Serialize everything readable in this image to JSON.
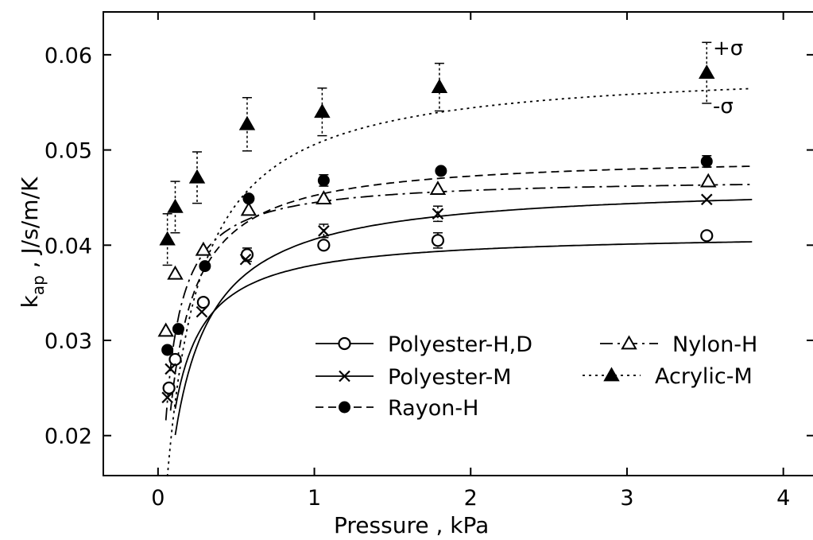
{
  "chart_data": {
    "type": "scatter",
    "xlabel": "Pressure , kPa",
    "ylabel": "k_ap , J/s/m/K",
    "xlim": [
      -0.35,
      4.2
    ],
    "ylim": [
      0.0158,
      0.0645
    ],
    "x_ticks": [
      0,
      1,
      2,
      3,
      4
    ],
    "x_tick_labels": [
      "0",
      "1",
      "2",
      "3",
      "4"
    ],
    "y_ticks": [
      0.02,
      0.03,
      0.04,
      0.05,
      0.06
    ],
    "y_tick_labels": [
      "0.02",
      "0.03",
      "0.04",
      "0.05",
      "0.06"
    ],
    "grid": false,
    "legend_position": "lower-right",
    "sigma_labels": {
      "plus": "+σ",
      "minus": "-σ"
    },
    "series": [
      {
        "name": "Polyester-H,D",
        "marker": "open-circle",
        "line": "solid",
        "points": [
          [
            0.07,
            0.025
          ],
          [
            0.11,
            0.028
          ],
          [
            0.29,
            0.034
          ],
          [
            0.57,
            0.039
          ],
          [
            1.06,
            0.04
          ],
          [
            1.79,
            0.0405
          ],
          [
            3.51,
            0.041
          ]
        ],
        "errors": [
          null,
          null,
          null,
          0.0007,
          null,
          0.0008,
          null
        ],
        "curve": {
          "a": 0.0413,
          "b": 0.089,
          "min_x": 0.11,
          "max_x": 3.8
        }
      },
      {
        "name": "Polyester-M",
        "marker": "cross",
        "line": "solid",
        "points": [
          [
            0.06,
            0.024
          ],
          [
            0.08,
            0.027
          ],
          [
            0.28,
            0.033
          ],
          [
            0.56,
            0.0385
          ],
          [
            1.06,
            0.0415
          ],
          [
            1.79,
            0.0433
          ],
          [
            3.51,
            0.0448
          ]
        ],
        "errors": [
          null,
          null,
          null,
          null,
          0.0007,
          0.0008,
          null
        ],
        "curve": {
          "a": 0.0465,
          "b": 0.145,
          "min_x": 0.11,
          "max_x": 3.8
        }
      },
      {
        "name": "Nylon-H",
        "marker": "open-triangle",
        "line": "dash-dot",
        "points": [
          [
            0.05,
            0.031
          ],
          [
            0.11,
            0.037
          ],
          [
            0.29,
            0.0395
          ],
          [
            0.58,
            0.0437
          ],
          [
            1.06,
            0.0449
          ],
          [
            1.79,
            0.0459
          ],
          [
            3.52,
            0.0467
          ]
        ],
        "errors": [],
        "curve": {
          "a": 0.0471,
          "b": 0.059,
          "min_x": 0.05,
          "max_x": 3.8
        }
      },
      {
        "name": "Acrylic-M",
        "marker": "filled-triangle",
        "line": "dotted",
        "points": [
          [
            0.06,
            0.0406
          ],
          [
            0.11,
            0.044
          ],
          [
            0.25,
            0.0471
          ],
          [
            0.57,
            0.0527
          ],
          [
            1.05,
            0.054
          ],
          [
            1.8,
            0.0566
          ],
          [
            3.51,
            0.0581
          ]
        ],
        "errors": [
          0.0027,
          0.0027,
          0.0027,
          0.0028,
          0.0025,
          0.0025,
          0.0032
        ],
        "curve": {
          "a": 0.0589,
          "b": 0.165,
          "min_x": 0.06,
          "max_x": 3.8
        }
      },
      {
        "name": "Rayon-H",
        "marker": "filled-circle",
        "line": "dashed",
        "points": [
          [
            0.06,
            0.029
          ],
          [
            0.13,
            0.0312
          ],
          [
            0.3,
            0.0378
          ],
          [
            0.58,
            0.0449
          ],
          [
            1.06,
            0.0468
          ],
          [
            1.81,
            0.0478
          ],
          [
            3.51,
            0.0488
          ]
        ],
        "errors": [
          null,
          null,
          null,
          null,
          0.0006,
          null,
          0.0006
        ],
        "curve": {
          "a": 0.0495,
          "b": 0.095,
          "min_x": 0.08,
          "max_x": 3.8
        }
      }
    ]
  }
}
